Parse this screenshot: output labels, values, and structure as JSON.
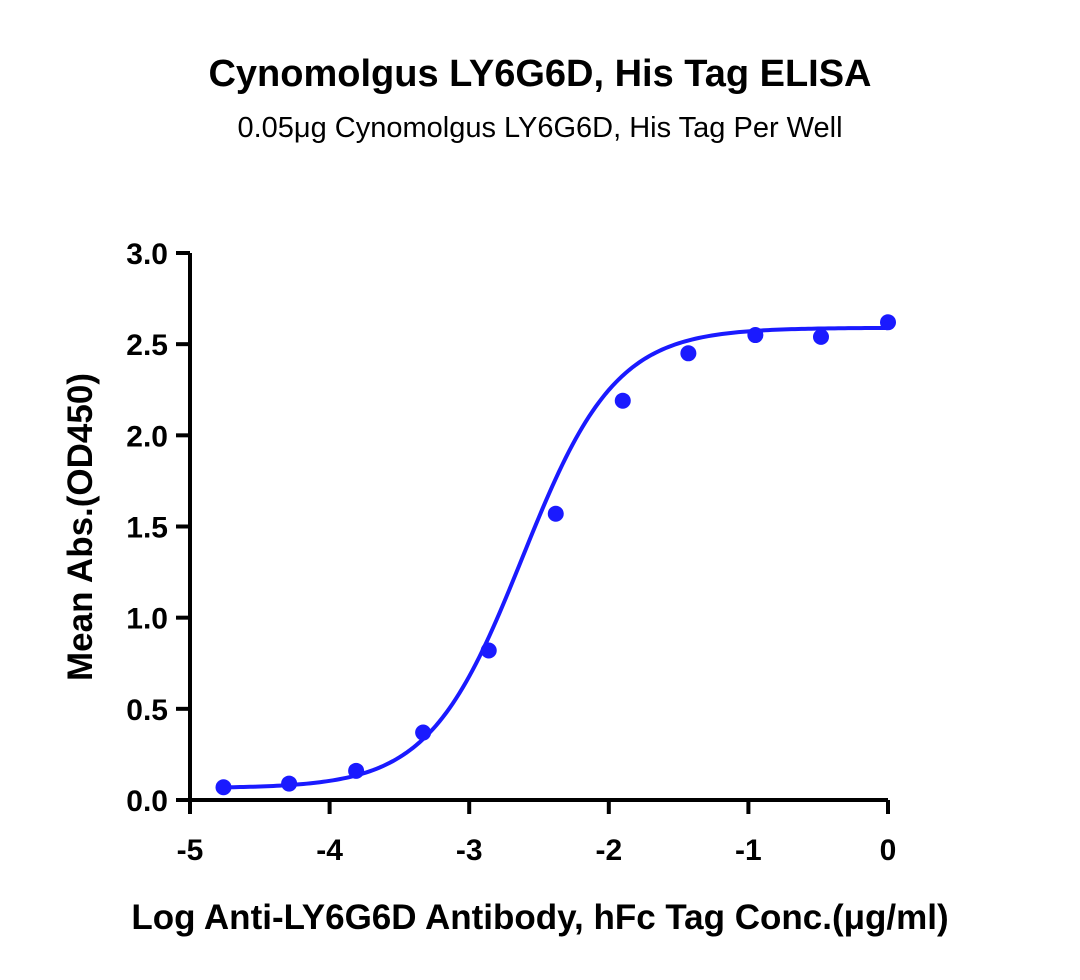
{
  "chart_data": {
    "type": "scatter",
    "title": "Cynomolgus LY6G6D, His Tag ELISA",
    "subtitle": "0.05μg Cynomolgus LY6G6D, His Tag Per Well",
    "xlabel": "Log Anti-LY6G6D Antibody, hFc Tag Conc.(μg/ml)",
    "ylabel": "Mean Abs.(OD450)",
    "xlim": [
      -5,
      0
    ],
    "ylim": [
      0,
      3.0
    ],
    "xticks": [
      -5,
      -4,
      -3,
      -2,
      -1,
      0
    ],
    "xtick_labels": [
      "-5",
      "-4",
      "-3",
      "-2",
      "-1",
      "0"
    ],
    "yticks": [
      0,
      0.5,
      1.0,
      1.5,
      2.0,
      2.5,
      3.0
    ],
    "ytick_labels": [
      "0.0",
      "0.5",
      "1.0",
      "1.5",
      "2.0",
      "2.5",
      "3.0"
    ],
    "grid": false,
    "series": [
      {
        "color": "#1a1aff",
        "x": [
          -4.76,
          -4.29,
          -3.81,
          -3.33,
          -2.86,
          -2.38,
          -1.9,
          -1.43,
          -0.95,
          -0.48,
          0
        ],
        "y": [
          0.07,
          0.09,
          0.16,
          0.37,
          0.82,
          1.57,
          2.19,
          2.45,
          2.55,
          2.54,
          2.62
        ],
        "fit": {
          "type": "4PL",
          "bottom": 0.065,
          "top": 2.59,
          "logEC50": -2.62,
          "hill": 1.3
        }
      }
    ]
  }
}
